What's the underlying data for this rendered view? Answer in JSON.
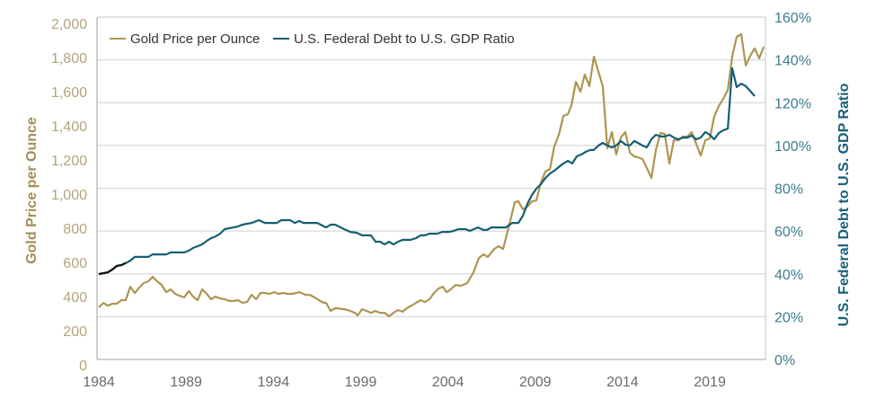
{
  "chart_data": {
    "type": "line",
    "title": "",
    "legend_placement": "top-left",
    "grid": true,
    "xlabel": "",
    "x_ticks": [
      "1984",
      "1989",
      "1994",
      "1999",
      "2004",
      "2009",
      "2014",
      "2019"
    ],
    "xlim": [
      1984,
      2022.1
    ],
    "y_left": {
      "label": "Gold Price per Ounce",
      "ylim": [
        0,
        2000
      ],
      "ticks": [
        "2,000",
        "1,800",
        "1,600",
        "1,400",
        "1,200",
        "1,000",
        "800",
        "600",
        "400",
        "200",
        "0"
      ]
    },
    "y_right": {
      "label": "U.S. Federal Debt to U.S. GDP Ratio",
      "ylim": [
        0,
        160
      ],
      "ticks": [
        "160%",
        "140%",
        "120%",
        "100%",
        "80%",
        "60%",
        "40%",
        "20%",
        "0%"
      ]
    },
    "series": [
      {
        "name": "Gold Price per Ounce",
        "axis": "left",
        "color": "#ad9552",
        "x": [
          1984.0,
          1984.26,
          1984.51,
          1984.77,
          1985.03,
          1985.29,
          1985.54,
          1985.8,
          1986.06,
          1986.32,
          1986.57,
          1986.83,
          1987.09,
          1987.35,
          1987.6,
          1987.86,
          1988.12,
          1988.37,
          1988.63,
          1988.89,
          1989.15,
          1989.4,
          1989.66,
          1989.92,
          1990.18,
          1990.43,
          1990.69,
          1990.95,
          1991.21,
          1991.46,
          1991.72,
          1991.98,
          1992.23,
          1992.49,
          1992.75,
          1993.01,
          1993.26,
          1993.52,
          1993.78,
          1994.04,
          1994.29,
          1994.55,
          1994.81,
          1995.07,
          1995.32,
          1995.48,
          1995.84,
          1996.09,
          1996.35,
          1996.61,
          1996.87,
          1997.02,
          1997.28,
          1997.54,
          1998.05,
          1998.41,
          1998.67,
          1998.82,
          1999.08,
          1999.34,
          1999.59,
          1999.85,
          2000.11,
          2000.37,
          2000.62,
          2000.88,
          2001.14,
          2001.4,
          2001.65,
          2001.91,
          2002.17,
          2002.43,
          2002.68,
          2002.94,
          2003.2,
          2003.45,
          2003.71,
          2003.92,
          2004.07,
          2004.43,
          2004.74,
          2005.1,
          2005.46,
          2005.77,
          2006.03,
          2006.28,
          2006.65,
          2006.9,
          2007.16,
          2007.42,
          2007.83,
          2008.03,
          2008.29,
          2008.55,
          2008.81,
          2009.06,
          2009.32,
          2009.58,
          2009.84,
          2010.09,
          2010.35,
          2010.61,
          2010.87,
          2011.07,
          2011.33,
          2011.59,
          2011.84,
          2012.1,
          2012.36,
          2012.62,
          2012.87,
          2013.13,
          2013.39,
          2013.64,
          2013.9,
          2014.16,
          2014.42,
          2014.67,
          2014.88,
          2015.14,
          2015.39,
          2015.65,
          2015.91,
          2016.17,
          2016.42,
          2016.68,
          2016.94,
          2017.2,
          2017.45,
          2017.71,
          2017.97,
          2018.22,
          2018.48,
          2018.74,
          2019.0,
          2019.25,
          2019.51,
          2019.77,
          2020.03,
          2020.28,
          2020.54,
          2020.8,
          2021.06,
          2021.32,
          2021.57,
          2021.83,
          2022.09
        ],
        "values": [
          337,
          363,
          347,
          358,
          358,
          379,
          379,
          458,
          421,
          453,
          479,
          489,
          516,
          489,
          468,
          426,
          442,
          416,
          405,
          395,
          432,
          400,
          379,
          442,
          416,
          384,
          400,
          389,
          384,
          374,
          374,
          379,
          363,
          368,
          410,
          384,
          421,
          421,
          416,
          426,
          416,
          421,
          416,
          416,
          421,
          426,
          410,
          410,
          395,
          379,
          363,
          363,
          316,
          332,
          326,
          316,
          305,
          289,
          326,
          316,
          305,
          316,
          305,
          305,
          284,
          305,
          321,
          311,
          332,
          347,
          363,
          379,
          368,
          384,
          421,
          447,
          458,
          426,
          435,
          468,
          463,
          479,
          542,
          626,
          647,
          632,
          679,
          695,
          679,
          784,
          953,
          958,
          911,
          926,
          958,
          963,
          1068,
          1132,
          1147,
          1279,
          1347,
          1458,
          1468,
          1521,
          1658,
          1600,
          1700,
          1632,
          1805,
          1716,
          1632,
          1268,
          1363,
          1232,
          1332,
          1363,
          1242,
          1221,
          1216,
          1205,
          1153,
          1095,
          1258,
          1358,
          1353,
          1179,
          1316,
          1316,
          1337,
          1337,
          1363,
          1295,
          1226,
          1316,
          1326,
          1453,
          1516,
          1558,
          1610,
          1805,
          1921,
          1937,
          1753,
          1811,
          1853,
          1795,
          1863
        ]
      },
      {
        "name": "U.S. Federal Debt to U.S. GDP Ratio",
        "axis": "right",
        "color": "#145e73",
        "x": [
          1984.0,
          1984.51,
          1984.77,
          1985.03,
          1985.29,
          1985.54,
          1985.8,
          1986.06,
          1986.83,
          1987.09,
          1987.86,
          1988.12,
          1988.89,
          1989.15,
          1989.4,
          1989.66,
          1989.92,
          1990.18,
          1990.43,
          1990.69,
          1990.95,
          1991.21,
          1991.46,
          1991.72,
          1991.98,
          1992.23,
          1992.75,
          1993.16,
          1993.52,
          1994.19,
          1994.45,
          1994.96,
          1995.22,
          1995.48,
          1995.73,
          1996.51,
          1997.02,
          1997.28,
          1997.54,
          1998.05,
          1998.41,
          1998.77,
          1999.08,
          1999.59,
          1999.85,
          2000.11,
          2000.37,
          2000.62,
          2000.88,
          2001.14,
          2001.4,
          2001.86,
          2002.17,
          2002.43,
          2002.68,
          2002.94,
          2003.4,
          2003.66,
          2004.07,
          2004.33,
          2004.59,
          2005.0,
          2005.25,
          2005.72,
          2006.03,
          2006.23,
          2006.49,
          2007.31,
          2007.68,
          2008.03,
          2008.29,
          2008.55,
          2008.81,
          2009.06,
          2009.32,
          2009.58,
          2009.84,
          2010.09,
          2010.35,
          2010.61,
          2010.87,
          2011.12,
          2011.38,
          2011.64,
          2011.89,
          2012.15,
          2012.36,
          2012.62,
          2012.87,
          2013.13,
          2013.39,
          2013.64,
          2013.9,
          2014.16,
          2014.42,
          2014.67,
          2014.88,
          2015.14,
          2015.39,
          2015.65,
          2015.91,
          2016.17,
          2016.42,
          2016.68,
          2016.94,
          2017.2,
          2017.45,
          2017.71,
          2017.97,
          2018.22,
          2018.48,
          2018.74,
          2019.0,
          2019.25,
          2019.51,
          2019.77,
          2020.03,
          2020.28,
          2020.54,
          2020.8,
          2021.06,
          2021.57
        ],
        "values": [
          39.9,
          40.7,
          42.0,
          43.7,
          44.1,
          45.0,
          46.2,
          47.9,
          47.9,
          49.1,
          49.1,
          50.0,
          50.0,
          50.8,
          52.1,
          52.9,
          53.8,
          55.4,
          56.7,
          57.5,
          58.8,
          60.9,
          61.3,
          61.7,
          62.2,
          63.0,
          63.8,
          65.1,
          63.8,
          63.8,
          65.1,
          65.1,
          63.8,
          64.7,
          63.8,
          63.8,
          61.7,
          63.0,
          63.0,
          60.9,
          59.6,
          59.2,
          58.0,
          58.0,
          55.0,
          55.0,
          53.8,
          55.0,
          53.8,
          55.0,
          55.9,
          55.9,
          56.7,
          58.0,
          58.0,
          58.8,
          58.8,
          59.6,
          59.6,
          60.1,
          60.9,
          60.9,
          60.1,
          61.7,
          60.5,
          60.5,
          61.7,
          61.7,
          63.8,
          63.8,
          67.2,
          72.7,
          76.9,
          79.8,
          81.9,
          84.8,
          86.9,
          88.2,
          89.9,
          91.6,
          92.8,
          91.6,
          94.9,
          95.8,
          97.0,
          97.9,
          97.9,
          100.0,
          101.2,
          100.0,
          99.1,
          100.0,
          102.1,
          100.4,
          100.0,
          102.1,
          101.2,
          100.0,
          99.1,
          102.9,
          105.0,
          104.2,
          104.2,
          105.0,
          103.7,
          102.9,
          103.7,
          103.7,
          104.6,
          102.9,
          103.7,
          106.3,
          105.0,
          102.9,
          105.8,
          107.1,
          107.9,
          136.1,
          127.3,
          128.9,
          127.7,
          123.1
        ]
      }
    ]
  }
}
